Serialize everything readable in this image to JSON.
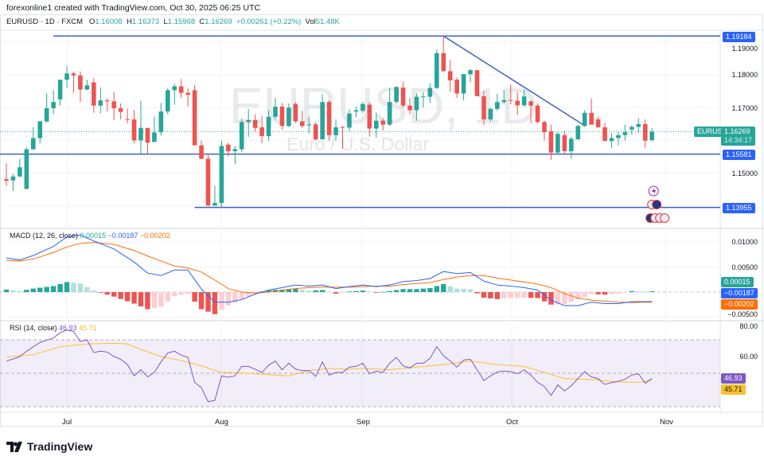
{
  "header": {
    "credit": "forexonline1 created with TradingView.com, Oct 30, 2025 06:25 UTC",
    "symbol": "EURUSD · 1D · FXCM",
    "o_label": "O",
    "o": "1.16008",
    "h_label": "H",
    "h": "1.16373",
    "l_label": "L",
    "l": "1.15968",
    "c_label": "C",
    "c": "1.16269",
    "change": "+0.00261 (+0.22%)",
    "vol_label": "Vol",
    "vol": "51.48K"
  },
  "watermark": {
    "title": "EURUSD, 1D",
    "subtitle": "Euro / U.S. Dollar"
  },
  "price_axis": {
    "ticks": [
      "1.19000",
      "1.18000",
      "1.17000",
      "1.15000"
    ],
    "levels": [
      "1.19184",
      "1.15581",
      "1.13955"
    ],
    "symbol_tag": "EURUSD",
    "last_price": "1.16269",
    "countdown": "14:34:17"
  },
  "macd": {
    "title": "MACD (12, 26, close)",
    "hist": "0.00015",
    "macd": "−0.00187",
    "signal": "−0.00202",
    "ticks": [
      "0.01000",
      "0.00500",
      "−0.00500"
    ]
  },
  "rsi": {
    "title": "RSI (14, close)",
    "rsi": "46.93",
    "ma": "45.71",
    "ticks": [
      "80.00",
      "60.00"
    ]
  },
  "time_axis": [
    "Jul",
    "Aug",
    "Sep",
    "Oct",
    "Nov"
  ],
  "brand": "TradingView",
  "colors": {
    "up": "#26a69a",
    "down": "#ef5350",
    "drawing": "#3f62c6",
    "macd": "#2962ff",
    "signal": "#ff6d00",
    "rsi": "#7e57c2",
    "rsi_ma": "#fbc02d",
    "level_tag": "#2962ff"
  },
  "icons": [
    "lightning-event-icon",
    "us-flag-event-icon",
    "eu-flag-event-icon"
  ],
  "chart_data": {
    "type": "candlestick",
    "symbol": "EURUSD",
    "interval": "1D",
    "ylim": [
      1.1345,
      1.1955
    ],
    "candles_ohlc": [
      [
        1.1482,
        1.153,
        1.1462,
        1.1477
      ],
      [
        1.1478,
        1.1498,
        1.1446,
        1.149
      ],
      [
        1.149,
        1.1543,
        1.1488,
        1.1518
      ],
      [
        1.1452,
        1.1579,
        1.1452,
        1.1573
      ],
      [
        1.1573,
        1.164,
        1.1571,
        1.1607
      ],
      [
        1.1607,
        1.166,
        1.1591,
        1.1658
      ],
      [
        1.1658,
        1.1743,
        1.1654,
        1.1698
      ],
      [
        1.1698,
        1.1753,
        1.168,
        1.1717
      ],
      [
        1.1725,
        1.1785,
        1.1706,
        1.1785
      ],
      [
        1.1785,
        1.1828,
        1.1761,
        1.1804
      ],
      [
        1.1804,
        1.181,
        1.1745,
        1.1798
      ],
      [
        1.1798,
        1.181,
        1.1717,
        1.1755
      ],
      [
        1.1755,
        1.1785,
        1.1753,
        1.1768
      ],
      [
        1.1777,
        1.179,
        1.1684,
        1.1706
      ],
      [
        1.1706,
        1.1762,
        1.1682,
        1.1722
      ],
      [
        1.1722,
        1.1729,
        1.1688,
        1.1719
      ],
      [
        1.1719,
        1.1747,
        1.1662,
        1.1698
      ],
      [
        1.1698,
        1.1713,
        1.1664,
        1.1687
      ],
      [
        1.1665,
        1.1697,
        1.1652,
        1.1664
      ],
      [
        1.1664,
        1.1693,
        1.1591,
        1.16
      ],
      [
        1.16,
        1.1721,
        1.1559,
        1.1638
      ],
      [
        1.1638,
        1.1638,
        1.1559,
        1.1593
      ],
      [
        1.1595,
        1.1672,
        1.1595,
        1.1624
      ],
      [
        1.1625,
        1.1714,
        1.1615,
        1.1688
      ],
      [
        1.1688,
        1.176,
        1.168,
        1.1753
      ],
      [
        1.1753,
        1.1773,
        1.1709,
        1.1765
      ],
      [
        1.1765,
        1.1787,
        1.173,
        1.1745
      ],
      [
        1.1745,
        1.176,
        1.1703,
        1.1739
      ],
      [
        1.1753,
        1.1769,
        1.1585,
        1.1585
      ],
      [
        1.1585,
        1.1599,
        1.1543,
        1.1544
      ],
      [
        1.1544,
        1.156,
        1.1401,
        1.1401
      ],
      [
        1.1401,
        1.1462,
        1.1401,
        1.1409
      ],
      [
        1.1409,
        1.1599,
        1.1393,
        1.1583
      ],
      [
        1.1587,
        1.1593,
        1.1551,
        1.1567
      ],
      [
        1.1567,
        1.1583,
        1.1528,
        1.1573
      ],
      [
        1.1573,
        1.1666,
        1.1565,
        1.1656
      ],
      [
        1.1656,
        1.1696,
        1.1611,
        1.1662
      ],
      [
        1.1662,
        1.1679,
        1.1628,
        1.1638
      ],
      [
        1.164,
        1.1674,
        1.1591,
        1.1613
      ],
      [
        1.1613,
        1.1692,
        1.1599,
        1.1672
      ],
      [
        1.1672,
        1.1729,
        1.1664,
        1.1703
      ],
      [
        1.1703,
        1.1714,
        1.1632,
        1.1644
      ],
      [
        1.1644,
        1.1713,
        1.164,
        1.17
      ],
      [
        1.1711,
        1.1717,
        1.1652,
        1.1658
      ],
      [
        1.1658,
        1.169,
        1.1638,
        1.1644
      ],
      [
        1.1646,
        1.1672,
        1.1622,
        1.1649
      ],
      [
        1.1649,
        1.1656,
        1.1599,
        1.1603
      ],
      [
        1.1603,
        1.1741,
        1.1603,
        1.1717
      ],
      [
        1.1717,
        1.1722,
        1.1599,
        1.1616
      ],
      [
        1.1616,
        1.1664,
        1.1599,
        1.164
      ],
      [
        1.1641,
        1.1644,
        1.1575,
        1.1639
      ],
      [
        1.1639,
        1.1695,
        1.1628,
        1.1682
      ],
      [
        1.1688,
        1.1703,
        1.167,
        1.1692
      ],
      [
        1.169,
        1.1717,
        1.1684,
        1.1711
      ],
      [
        1.1709,
        1.1717,
        1.1612,
        1.1636
      ],
      [
        1.1636,
        1.1685,
        1.1608,
        1.166
      ],
      [
        1.166,
        1.1668,
        1.163,
        1.1648
      ],
      [
        1.1648,
        1.176,
        1.1644,
        1.1717
      ],
      [
        1.1717,
        1.1765,
        1.1713,
        1.1763
      ],
      [
        1.1761,
        1.1779,
        1.17,
        1.1706
      ],
      [
        1.1706,
        1.173,
        1.168,
        1.1692
      ],
      [
        1.1692,
        1.1744,
        1.166,
        1.1733
      ],
      [
        1.1733,
        1.1747,
        1.17,
        1.1734
      ],
      [
        1.1733,
        1.1774,
        1.1714,
        1.176
      ],
      [
        1.176,
        1.1876,
        1.1757,
        1.1866
      ],
      [
        1.1866,
        1.1918,
        1.181,
        1.1811
      ],
      [
        1.1811,
        1.1846,
        1.1749,
        1.1783
      ],
      [
        1.1785,
        1.1792,
        1.1729,
        1.1743
      ],
      [
        1.1743,
        1.1803,
        1.1722,
        1.1802
      ],
      [
        1.1802,
        1.1818,
        1.1777,
        1.1814
      ],
      [
        1.1814,
        1.1816,
        1.1735,
        1.1735
      ],
      [
        1.1735,
        1.1751,
        1.1646,
        1.1664
      ],
      [
        1.1664,
        1.17,
        1.1658,
        1.1696
      ],
      [
        1.1696,
        1.1742,
        1.169,
        1.1717
      ],
      [
        1.1717,
        1.1754,
        1.1711,
        1.1723
      ],
      [
        1.1723,
        1.177,
        1.171,
        1.1721
      ],
      [
        1.1721,
        1.1747,
        1.1677,
        1.1707
      ],
      [
        1.1707,
        1.1754,
        1.1703,
        1.1734
      ],
      [
        1.1719,
        1.1722,
        1.1652,
        1.1706
      ],
      [
        1.1706,
        1.1713,
        1.1652,
        1.1656
      ],
      [
        1.1656,
        1.166,
        1.1599,
        1.1625
      ],
      [
        1.1628,
        1.1648,
        1.1541,
        1.1563
      ],
      [
        1.1563,
        1.1625,
        1.1559,
        1.162
      ],
      [
        1.1616,
        1.1628,
        1.1559,
        1.1567
      ],
      [
        1.1567,
        1.1611,
        1.1544,
        1.1605
      ],
      [
        1.1603,
        1.1648,
        1.1603,
        1.1644
      ],
      [
        1.1644,
        1.1692,
        1.1641,
        1.1684
      ],
      [
        1.1684,
        1.1727,
        1.1648,
        1.1648
      ],
      [
        1.1664,
        1.1672,
        1.1638,
        1.164
      ],
      [
        1.164,
        1.1654,
        1.1598,
        1.1598
      ],
      [
        1.1598,
        1.1622,
        1.1577,
        1.1607
      ],
      [
        1.1607,
        1.1625,
        1.1585,
        1.1616
      ],
      [
        1.1616,
        1.1648,
        1.1599,
        1.1625
      ],
      [
        1.1633,
        1.1646,
        1.1617,
        1.1641
      ],
      [
        1.1641,
        1.1668,
        1.1624,
        1.165
      ],
      [
        1.165,
        1.1664,
        1.1577,
        1.1599
      ],
      [
        1.16008,
        1.16373,
        1.15968,
        1.16269
      ]
    ],
    "horizontal_levels": [
      1.19184,
      1.15581,
      1.13955
    ],
    "trendline": {
      "from": {
        "bar": 65,
        "price": 1.19184
      },
      "to": {
        "bar": 86,
        "price": 1.1645
      }
    },
    "macd_line": [
      [
        0,
        0.0068
      ],
      [
        2,
        0.0064
      ],
      [
        4,
        0.0073
      ],
      [
        7,
        0.0091
      ],
      [
        9,
        0.011
      ],
      [
        11,
        0.0114
      ],
      [
        13,
        0.0102
      ],
      [
        16,
        0.0086
      ],
      [
        19,
        0.006
      ],
      [
        21,
        0.0038
      ],
      [
        23,
        0.0033
      ],
      [
        25,
        0.0044
      ],
      [
        27,
        0.0044
      ],
      [
        29,
        0.0006
      ],
      [
        31,
        -0.002
      ],
      [
        33,
        -0.002
      ],
      [
        35,
        -0.0015
      ],
      [
        37,
        -0.0004
      ],
      [
        39,
        0.0004
      ],
      [
        41,
        0.0009
      ],
      [
        43,
        0.0014
      ],
      [
        45,
        0.0012
      ],
      [
        47,
        0.0014
      ],
      [
        49,
        0.0007
      ],
      [
        51,
        0.0011
      ],
      [
        53,
        0.0014
      ],
      [
        55,
        0.0011
      ],
      [
        57,
        0.0014
      ],
      [
        59,
        0.0021
      ],
      [
        61,
        0.0023
      ],
      [
        63,
        0.0027
      ],
      [
        65,
        0.0041
      ],
      [
        67,
        0.0037
      ],
      [
        69,
        0.0039
      ],
      [
        71,
        0.0022
      ],
      [
        73,
        0.0014
      ],
      [
        75,
        0.0012
      ],
      [
        77,
        0.0009
      ],
      [
        79,
        0.0004
      ],
      [
        81,
        -0.0016
      ],
      [
        83,
        -0.0027
      ],
      [
        85,
        -0.0027
      ],
      [
        87,
        -0.002
      ],
      [
        89,
        -0.0023
      ],
      [
        91,
        -0.0023
      ],
      [
        93,
        -0.0019
      ],
      [
        95,
        -0.0019
      ],
      [
        96,
        -0.00187
      ]
    ],
    "signal_line": [
      [
        0,
        0.0063
      ],
      [
        2,
        0.0062
      ],
      [
        4,
        0.0066
      ],
      [
        7,
        0.0079
      ],
      [
        9,
        0.009
      ],
      [
        11,
        0.0097
      ],
      [
        13,
        0.0099
      ],
      [
        16,
        0.0095
      ],
      [
        19,
        0.0083
      ],
      [
        21,
        0.0072
      ],
      [
        23,
        0.0062
      ],
      [
        25,
        0.0052
      ],
      [
        27,
        0.0048
      ],
      [
        29,
        0.004
      ],
      [
        31,
        0.0024
      ],
      [
        33,
        0.0007
      ],
      [
        35,
        0.0
      ],
      [
        37,
        -0.0002
      ],
      [
        39,
        0.0
      ],
      [
        41,
        0.0004
      ],
      [
        43,
        0.0007
      ],
      [
        45,
        0.0009
      ],
      [
        47,
        0.001
      ],
      [
        49,
        0.001
      ],
      [
        51,
        0.001
      ],
      [
        53,
        0.0011
      ],
      [
        55,
        0.0012
      ],
      [
        57,
        0.0012
      ],
      [
        59,
        0.0015
      ],
      [
        61,
        0.0017
      ],
      [
        63,
        0.0019
      ],
      [
        65,
        0.0025
      ],
      [
        67,
        0.003
      ],
      [
        69,
        0.0033
      ],
      [
        71,
        0.0033
      ],
      [
        73,
        0.0028
      ],
      [
        75,
        0.0024
      ],
      [
        77,
        0.002
      ],
      [
        79,
        0.0016
      ],
      [
        81,
        0.0009
      ],
      [
        83,
        -0.0003
      ],
      [
        85,
        -0.0012
      ],
      [
        87,
        -0.0016
      ],
      [
        89,
        -0.0018
      ],
      [
        91,
        -0.002
      ],
      [
        93,
        -0.0021
      ],
      [
        95,
        -0.002
      ],
      [
        96,
        -0.00202
      ]
    ],
    "rsi": [
      57.3,
      58.5,
      60,
      63.2,
      65.8,
      68.4,
      69.8,
      71.1,
      74.3,
      75.9,
      75,
      69,
      70,
      62.4,
      63.2,
      62.7,
      60,
      58.4,
      55.2,
      48.4,
      52.1,
      47.8,
      50.5,
      56.8,
      62.1,
      63.2,
      60.8,
      59.5,
      44.6,
      41.4,
      33,
      33.8,
      48.4,
      47.6,
      48.4,
      54.1,
      54.1,
      52.4,
      50.5,
      54.8,
      57.3,
      52.1,
      56,
      52.5,
      51.6,
      51.6,
      48.1,
      56.8,
      48.9,
      50.5,
      50.5,
      53.7,
      54.1,
      56,
      49.7,
      51.3,
      50.5,
      56,
      59.5,
      54.4,
      53.2,
      56,
      56,
      58.9,
      65.9,
      60.5,
      57.3,
      53.7,
      57.9,
      58.4,
      52.1,
      45.7,
      48.4,
      50.8,
      51.3,
      51,
      49.7,
      52.1,
      48.9,
      44.6,
      42.1,
      36.7,
      43,
      39.4,
      42.5,
      46.8,
      51,
      47.8,
      46.8,
      43.3,
      44.4,
      45.2,
      46.5,
      48.9,
      49.7,
      44.1,
      46.93
    ],
    "rsi_ma": [
      [
        0,
        59.8
      ],
      [
        4,
        61.1
      ],
      [
        8,
        65.9
      ],
      [
        12,
        67.5
      ],
      [
        16,
        68
      ],
      [
        18,
        67.5
      ],
      [
        20,
        64.3
      ],
      [
        23,
        60
      ],
      [
        26,
        57.6
      ],
      [
        29,
        54.4
      ],
      [
        32,
        50.5
      ],
      [
        36,
        50
      ],
      [
        40,
        48.9
      ],
      [
        42,
        48.4
      ],
      [
        45,
        51.6
      ],
      [
        48,
        52.9
      ],
      [
        51,
        52.4
      ],
      [
        53,
        52.9
      ],
      [
        57,
        52.1
      ],
      [
        61,
        53.7
      ],
      [
        65,
        55.2
      ],
      [
        69,
        57.3
      ],
      [
        73,
        55.2
      ],
      [
        77,
        54.1
      ],
      [
        80,
        50.5
      ],
      [
        83,
        46.8
      ],
      [
        87,
        46.2
      ],
      [
        91,
        44.9
      ],
      [
        94,
        44.6
      ],
      [
        96,
        45.71
      ]
    ],
    "rsi_bands": [
      70,
      50,
      30
    ]
  }
}
